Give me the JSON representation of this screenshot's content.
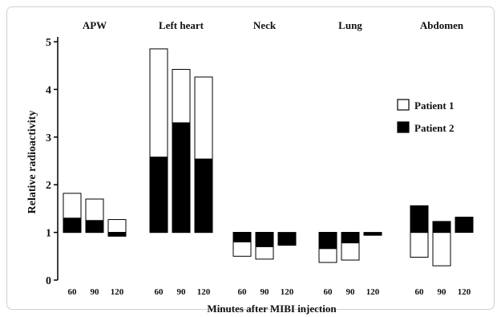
{
  "chart_data": {
    "type": "bar",
    "xlabel": "Minutes after MIBI injection",
    "ylabel": "Relative radioactivity",
    "ylim": [
      0,
      5
    ],
    "yticks": [
      0,
      1,
      2,
      3,
      4,
      5
    ],
    "baseline": 1,
    "groups": [
      {
        "label": "APW",
        "bars": [
          {
            "x": "60",
            "patient1": 1.82,
            "patient2": 1.3
          },
          {
            "x": "90",
            "patient1": 1.7,
            "patient2": 1.25
          },
          {
            "x": "120",
            "patient1": 1.27,
            "patient2": 0.92
          }
        ]
      },
      {
        "label": "Left heart",
        "bars": [
          {
            "x": "60",
            "patient1": 4.85,
            "patient2": 2.58
          },
          {
            "x": "90",
            "patient1": 4.42,
            "patient2": 3.3
          },
          {
            "x": "120",
            "patient1": 4.26,
            "patient2": 2.54
          }
        ]
      },
      {
        "label": "Neck",
        "bars": [
          {
            "x": "60",
            "patient1": 0.5,
            "patient2": 0.8
          },
          {
            "x": "90",
            "patient1": 0.44,
            "patient2": 0.7
          },
          {
            "x": "120",
            "patient1": null,
            "patient2": 0.73
          }
        ]
      },
      {
        "label": "Lung",
        "bars": [
          {
            "x": "60",
            "patient1": 0.37,
            "patient2": 0.66
          },
          {
            "x": "90",
            "patient1": 0.42,
            "patient2": 0.78
          },
          {
            "x": "120",
            "patient1": null,
            "patient2": 0.94
          }
        ]
      },
      {
        "label": "Abdomen",
        "bars": [
          {
            "x": "60",
            "patient1": 0.48,
            "patient2": 1.56
          },
          {
            "x": "90",
            "patient1": 0.3,
            "patient2": 1.23
          },
          {
            "x": "120",
            "patient1": null,
            "patient2": 1.32
          }
        ]
      }
    ],
    "series": [
      {
        "name": "Patient 1",
        "color": "#ffffff"
      },
      {
        "name": "Patient 2",
        "color": "#000000"
      }
    ],
    "legend": "top-right",
    "grid": false
  }
}
